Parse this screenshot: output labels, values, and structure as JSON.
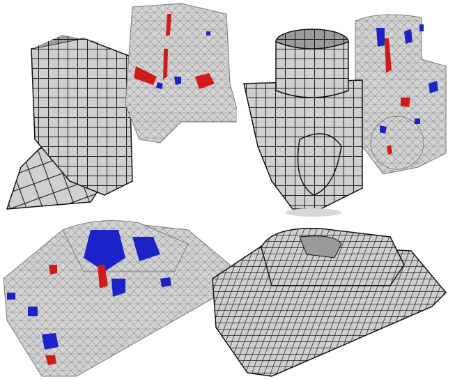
{
  "figure": {
    "panels": [
      {
        "id": "top-left",
        "left_mesh": "hexahedral",
        "right_mesh": "tetrahedral-with-defects"
      },
      {
        "id": "top-right",
        "left_mesh": "hexahedral",
        "right_mesh": "tetrahedral-with-defects"
      },
      {
        "id": "bottom-left",
        "mesh": "tetrahedral-with-defects"
      },
      {
        "id": "bottom-right",
        "mesh": "hexahedral"
      }
    ],
    "colors": {
      "hex_face": "#c8c8c8",
      "hex_edge": "#1a1a1a",
      "tet_face": "#cfcfcf",
      "tet_edge": "#8a8a8a",
      "defect_red": "#d11a1a",
      "defect_blue": "#1a22c8",
      "background": "#ffffff"
    }
  }
}
